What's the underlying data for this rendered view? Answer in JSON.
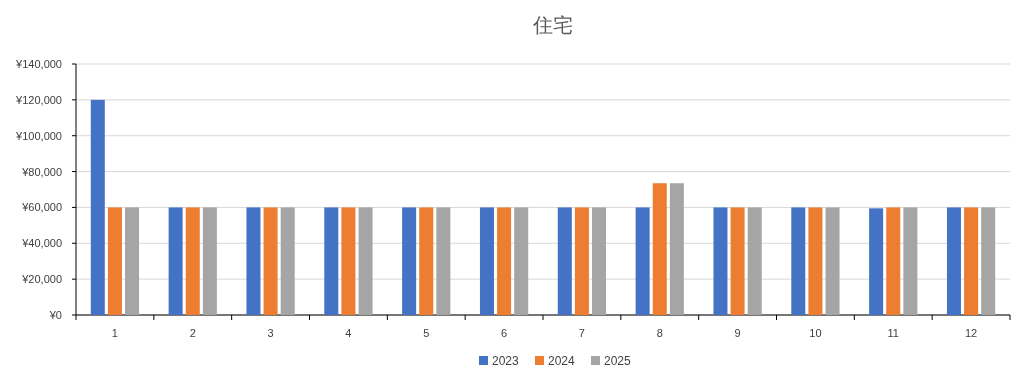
{
  "chart_data": {
    "type": "bar",
    "title": "住宅",
    "categories": [
      "1",
      "2",
      "3",
      "4",
      "5",
      "6",
      "7",
      "8",
      "9",
      "10",
      "11",
      "12"
    ],
    "series": [
      {
        "name": "2023",
        "color": "#4472c4",
        "values": [
          120000,
          60000,
          60000,
          60000,
          60000,
          60000,
          60000,
          60000,
          60000,
          60000,
          59500,
          60000
        ]
      },
      {
        "name": "2024",
        "color": "#ed7d31",
        "values": [
          60000,
          60000,
          60000,
          60000,
          60000,
          60000,
          60000,
          73500,
          60000,
          60000,
          60000,
          60000
        ]
      },
      {
        "name": "2025",
        "color": "#a5a5a5",
        "values": [
          60000,
          60000,
          60000,
          60000,
          60000,
          60000,
          60000,
          73500,
          60000,
          60000,
          60000,
          60000
        ]
      }
    ],
    "ylim": [
      0,
      140000
    ],
    "yticks": [
      {
        "value": 0,
        "label": "¥0"
      },
      {
        "value": 20000,
        "label": "¥20,000"
      },
      {
        "value": 40000,
        "label": "¥40,000"
      },
      {
        "value": 60000,
        "label": "¥60,000"
      },
      {
        "value": 80000,
        "label": "¥80,000"
      },
      {
        "value": 100000,
        "label": "¥100,000"
      },
      {
        "value": 120000,
        "label": "¥120,000"
      },
      {
        "value": 140000,
        "label": "¥140,000"
      }
    ],
    "grid": "y",
    "legend": "bottom"
  }
}
